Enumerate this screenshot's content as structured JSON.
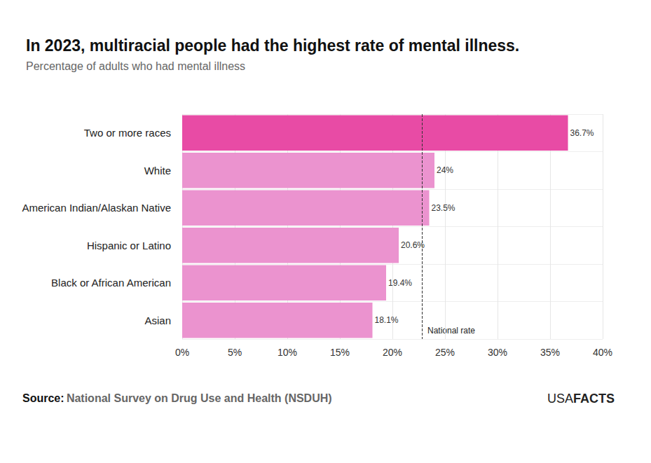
{
  "chart_data": {
    "type": "bar",
    "orientation": "horizontal",
    "title": "In 2023, multiracial people had the highest rate of mental illness.",
    "subtitle": "Percentage of adults who had mental illness",
    "categories": [
      "Two or more races",
      "White",
      "American Indian/Alaskan Native",
      "Hispanic or Latino",
      "Black or African American",
      "Asian"
    ],
    "values": [
      36.7,
      24,
      23.5,
      20.6,
      19.4,
      18.1
    ],
    "value_labels": [
      "36.7%",
      "24%",
      "23.5%",
      "20.6%",
      "19.4%",
      "18.1%"
    ],
    "colors": [
      "#e84ba5",
      "#eb93cf",
      "#eb93cf",
      "#eb93cf",
      "#eb93cf",
      "#eb93cf"
    ],
    "data_labels": true,
    "xlim": [
      0,
      40
    ],
    "xticks": [
      {
        "value": 0,
        "label": "0%"
      },
      {
        "value": 5,
        "label": "5%"
      },
      {
        "value": 10,
        "label": "10%"
      },
      {
        "value": 15,
        "label": "15%"
      },
      {
        "value": 20,
        "label": "20%"
      },
      {
        "value": 25,
        "label": "25%"
      },
      {
        "value": 30,
        "label": "30%"
      },
      {
        "value": 35,
        "label": "35%"
      },
      {
        "value": 40,
        "label": "40%"
      }
    ],
    "grid": true,
    "reference_line": {
      "value": 22.8,
      "label": "National rate"
    },
    "source_label": "Source:",
    "source": "National Survey on Drug Use and Health (NSDUH)",
    "brand": [
      "USA",
      "FACTS"
    ]
  }
}
